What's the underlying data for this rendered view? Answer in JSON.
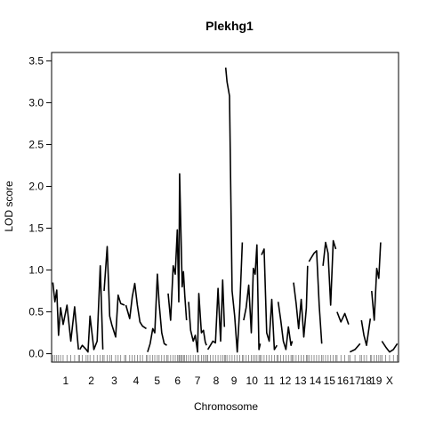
{
  "chart_data": {
    "type": "line",
    "title": "Plekhg1",
    "xlabel": "Chromosome",
    "ylabel": "LOD score",
    "ylim": [
      -0.1,
      3.6
    ],
    "yticks": [
      "0.0",
      "0.5",
      "1.0",
      "1.5",
      "2.0",
      "2.5",
      "3.0",
      "3.5"
    ],
    "grid": false,
    "legend": "none",
    "line_color": "#000000",
    "chromosomes": [
      {
        "name": "1",
        "length": 100,
        "label": "1",
        "x": [
          0,
          8,
          15,
          22,
          30,
          40,
          55,
          70,
          85,
          100
        ],
        "lod": [
          0.85,
          0.62,
          0.76,
          0.22,
          0.55,
          0.35,
          0.58,
          0.15,
          0.56,
          0.05
        ]
      },
      {
        "name": "2",
        "length": 90,
        "label": "2",
        "x": [
          0,
          10,
          25,
          32,
          40,
          55,
          68,
          80,
          90
        ],
        "lod": [
          0.05,
          0.1,
          0.05,
          0.02,
          0.45,
          0.05,
          0.15,
          1.05,
          0.05
        ]
      },
      {
        "name": "3",
        "length": 80,
        "label": "3",
        "x": [
          0,
          12,
          22,
          30,
          45,
          55,
          65,
          80
        ],
        "lod": [
          0.75,
          1.28,
          0.45,
          0.35,
          0.2,
          0.7,
          0.6,
          0.58
        ]
      },
      {
        "name": "4",
        "length": 80,
        "label": "4",
        "x": [
          0,
          15,
          25,
          35,
          45,
          55,
          65,
          80
        ],
        "lod": [
          0.58,
          0.42,
          0.68,
          0.84,
          0.58,
          0.38,
          0.33,
          0.3
        ]
      },
      {
        "name": "5",
        "length": 75,
        "label": "5",
        "x": [
          0,
          10,
          20,
          28,
          38,
          45,
          55,
          65,
          75
        ],
        "lod": [
          0.02,
          0.12,
          0.3,
          0.25,
          0.95,
          0.6,
          0.25,
          0.12,
          0.1
        ]
      },
      {
        "name": "6",
        "length": 75,
        "label": "6",
        "x": [
          0,
          10,
          20,
          28,
          36,
          42,
          45,
          50,
          55,
          60,
          65,
          72
        ],
        "lod": [
          0.72,
          0.4,
          1.05,
          0.95,
          1.48,
          0.62,
          2.15,
          1.45,
          0.8,
          0.98,
          0.7,
          0.4
        ]
      },
      {
        "name": "7",
        "length": 70,
        "label": "7",
        "x": [
          0,
          8,
          18,
          26,
          35,
          40,
          50,
          58,
          65,
          70
        ],
        "lod": [
          0.62,
          0.28,
          0.15,
          0.22,
          0.02,
          0.72,
          0.25,
          0.28,
          0.14,
          0.1
        ]
      },
      {
        "name": "8",
        "length": 65,
        "label": "8",
        "x": [
          0,
          10,
          20,
          30,
          40,
          50,
          58,
          65
        ],
        "lod": [
          0.05,
          0.1,
          0.15,
          0.13,
          0.78,
          0.15,
          0.88,
          0.32
        ]
      },
      {
        "name": "9",
        "length": 65,
        "label": "9",
        "x": [
          0,
          5,
          15,
          25,
          35,
          45,
          55,
          65
        ],
        "lod": [
          3.42,
          3.25,
          3.08,
          0.75,
          0.45,
          0.02,
          0.55,
          1.33
        ]
      },
      {
        "name": "10",
        "length": 65,
        "label": "10",
        "x": [
          0,
          10,
          20,
          30,
          38,
          45,
          52,
          60,
          65
        ],
        "lod": [
          0.4,
          0.55,
          0.82,
          0.25,
          1.02,
          0.95,
          1.3,
          0.05,
          0.12
        ]
      },
      {
        "name": "11",
        "length": 60,
        "label": "11",
        "x": [
          0,
          10,
          20,
          30,
          40,
          50,
          60
        ],
        "lod": [
          1.18,
          1.25,
          0.25,
          0.15,
          0.65,
          0.05,
          0.1
        ]
      },
      {
        "name": "12",
        "length": 55,
        "label": "12",
        "x": [
          0,
          10,
          20,
          30,
          40,
          50,
          55
        ],
        "lod": [
          0.62,
          0.4,
          0.15,
          0.05,
          0.32,
          0.1,
          0.15
        ]
      },
      {
        "name": "13",
        "length": 55,
        "label": "13",
        "x": [
          0,
          10,
          20,
          30,
          40,
          50,
          55
        ],
        "lod": [
          0.85,
          0.6,
          0.3,
          0.65,
          0.2,
          0.55,
          1.05
        ]
      },
      {
        "name": "14",
        "length": 50,
        "label": "14",
        "x": [
          0,
          10,
          20,
          30,
          40,
          50
        ],
        "lod": [
          1.1,
          1.15,
          1.2,
          1.23,
          0.58,
          0.12
        ]
      },
      {
        "name": "15",
        "length": 50,
        "label": "15",
        "x": [
          0,
          10,
          20,
          30,
          40,
          50
        ],
        "lod": [
          1.05,
          1.33,
          1.2,
          0.58,
          1.35,
          1.25
        ]
      },
      {
        "name": "16",
        "length": 45,
        "label": "16",
        "x": [
          0,
          15,
          30,
          45
        ],
        "lod": [
          0.5,
          0.38,
          0.48,
          0.35
        ]
      },
      {
        "name": "17",
        "length": 40,
        "label": "17",
        "x": [
          0,
          20,
          40
        ],
        "lod": [
          0.02,
          0.05,
          0.12
        ]
      },
      {
        "name": "18",
        "length": 35,
        "label": "18",
        "x": [
          0,
          10,
          20,
          35
        ],
        "lod": [
          0.4,
          0.22,
          0.1,
          0.42
        ]
      },
      {
        "name": "19",
        "length": 35,
        "label": "19",
        "x": [
          0,
          10,
          20,
          28,
          35
        ],
        "lod": [
          0.75,
          0.4,
          1.02,
          0.9,
          1.33
        ]
      },
      {
        "name": "X",
        "length": 60,
        "label": "X",
        "x": [
          0,
          15,
          30,
          45,
          60
        ],
        "lod": [
          0.15,
          0.08,
          0.02,
          0.05,
          0.12
        ]
      }
    ]
  }
}
